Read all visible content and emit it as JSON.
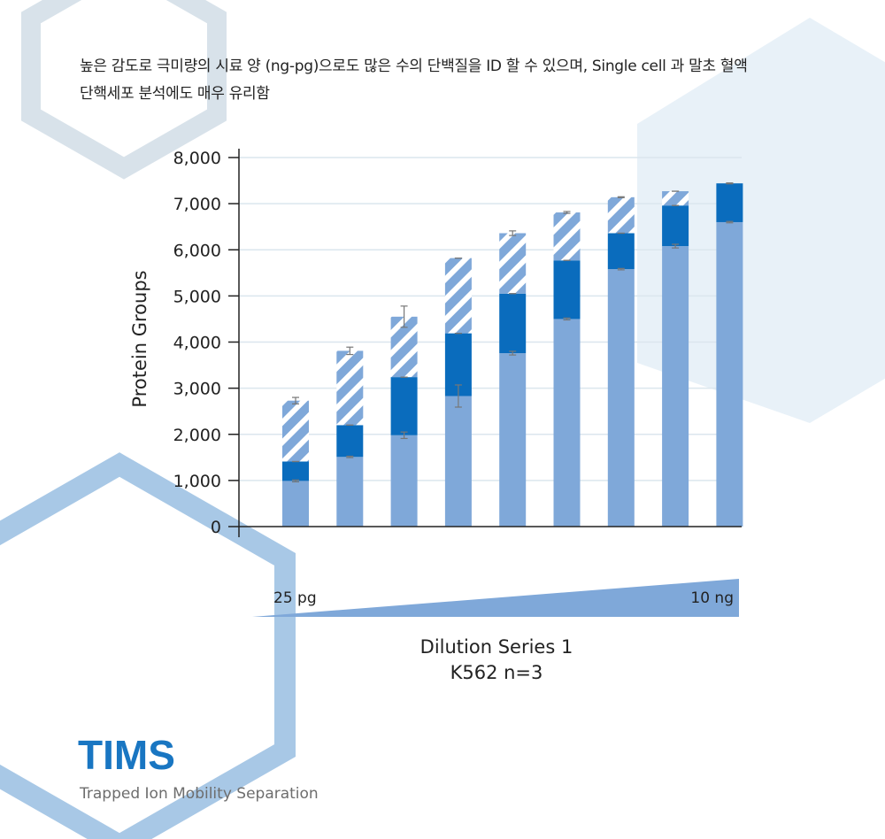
{
  "description": {
    "line1": "높은 감도로 극미량의 시료 양 (ng-pg)으로도  많은 수의 단백질을 ID 할 수 있으며, Single cell 과 말초 혈액",
    "line2": "단핵세포 분석에도 매우 유리함"
  },
  "brand": {
    "title": "TIMS",
    "subtitle": "Trapped Ion Mobility Separation"
  },
  "colors": {
    "bar_base": "#7fa8d9",
    "bar_mid": "#0a6cbd",
    "bar_hatch": "#7fa8d9",
    "hex_light": "#e8f1f8",
    "hex_mid": "#a8c8e6",
    "hex_gray": "#d8e2ea",
    "brand": "#1976c2"
  },
  "chart_data": {
    "type": "bar",
    "stacked": true,
    "ylabel": "Protein Groups",
    "ylim": [
      0,
      8000
    ],
    "yticks": [
      0,
      1000,
      2000,
      3000,
      4000,
      5000,
      6000,
      7000,
      8000
    ],
    "ytick_labels": [
      "0",
      "1,000",
      "2,000",
      "3,000",
      "4,000",
      "5,000",
      "6,000",
      "7,000",
      "8,000"
    ],
    "grid": true,
    "series": [
      {
        "style": "light-solid",
        "values": [
          990,
          1510,
          1980,
          2830,
          3760,
          4500,
          5580,
          6080,
          6600
        ],
        "errors": [
          20,
          15,
          70,
          240,
          40,
          20,
          15,
          40,
          15
        ]
      },
      {
        "style": "dark-solid",
        "values": [
          420,
          690,
          1260,
          1360,
          1290,
          1270,
          780,
          880,
          840
        ],
        "errors": [
          0,
          0,
          0,
          0,
          0,
          0,
          0,
          0,
          0
        ]
      },
      {
        "style": "hatched",
        "values": [
          1320,
          1610,
          1310,
          1630,
          1310,
          1040,
          780,
          310,
          0
        ],
        "errors": [
          70,
          80,
          230,
          0,
          50,
          20,
          10,
          0,
          10
        ]
      }
    ],
    "dilution": {
      "start_label": "25 pg",
      "end_label": "10 ng"
    },
    "xlabel_line1": "Dilution Series 1",
    "xlabel_line2": "K562 n=3"
  }
}
